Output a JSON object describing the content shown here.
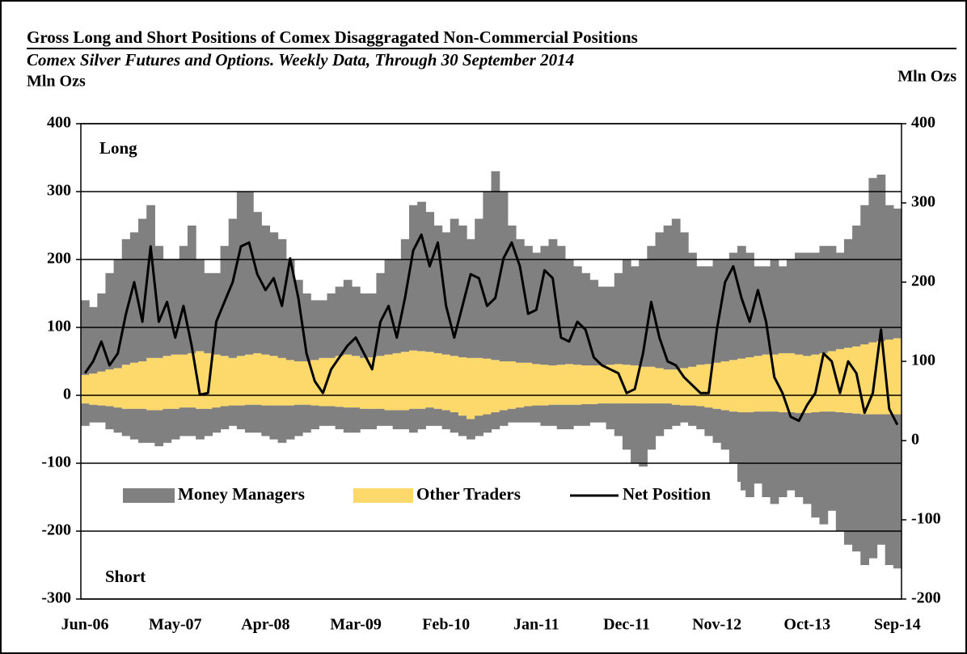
{
  "chart_data": {
    "type": "area",
    "title": "Gross Long and Short Positions of Comex Disaggragated Non-Commercial Positions",
    "subtitle": "Comex Silver Futures and Options. Weekly Data, Through 30 September 2014",
    "y_label": "Mln Ozs",
    "y2_label": "Mln Ozs",
    "annotations": [
      "Long",
      "Short"
    ],
    "categories": [
      "Jun-06",
      null,
      null,
      null,
      null,
      null,
      null,
      null,
      null,
      null,
      null,
      "May-07",
      null,
      null,
      null,
      null,
      null,
      null,
      null,
      null,
      null,
      null,
      "Apr-08",
      null,
      null,
      null,
      null,
      null,
      null,
      null,
      null,
      null,
      null,
      "Mar-09",
      null,
      null,
      null,
      null,
      null,
      null,
      null,
      null,
      null,
      null,
      "Feb-10",
      null,
      null,
      null,
      null,
      null,
      null,
      null,
      null,
      null,
      null,
      "Jan-11",
      null,
      null,
      null,
      null,
      null,
      null,
      null,
      null,
      null,
      null,
      "Dec-11",
      null,
      null,
      null,
      null,
      null,
      null,
      null,
      null,
      null,
      null,
      "Nov-12",
      null,
      null,
      null,
      null,
      null,
      null,
      null,
      null,
      null,
      null,
      "Oct-13",
      null,
      null,
      null,
      null,
      null,
      null,
      null,
      null,
      null,
      null,
      "Sep-14"
    ],
    "ylim": [
      -300,
      400
    ],
    "yticks": [
      -300,
      -200,
      -100,
      0,
      100,
      200,
      300,
      400
    ],
    "y2lim": [
      -200,
      400
    ],
    "y2ticks": [
      -200,
      -100,
      0,
      100,
      200,
      300,
      400
    ],
    "grid": true,
    "series": [
      {
        "name": "Money Managers",
        "color": "#808080",
        "long": [
          110,
          98,
          115,
          142,
          160,
          185,
          192,
          210,
          225,
          165,
          142,
          140,
          160,
          188,
          135,
          118,
          120,
          162,
          205,
          242,
          240,
          208,
          190,
          182,
          175,
          148,
          120,
          100,
          88,
          85,
          95,
          102,
          110,
          102,
          95,
          94,
          122,
          140,
          138,
          166,
          214,
          220,
          206,
          188,
          180,
          202,
          194,
          175,
          205,
          246,
          278,
          250,
          200,
          182,
          172,
          164,
          175,
          186,
          175,
          154,
          145,
          136,
          126,
          116,
          115,
          134,
          155,
          146,
          158,
          178,
          200,
          212,
          222,
          200,
          168,
          145,
          144,
          152,
          150,
          158,
          166,
          154,
          132,
          130,
          140,
          128,
          138,
          150,
          152,
          150,
          158,
          155,
          142,
          160,
          178,
          205,
          242,
          245,
          198,
          191
        ],
        "short": [
          -33,
          -26,
          -25,
          -34,
          -37,
          -40,
          -45,
          -50,
          -48,
          -53,
          -50,
          -45,
          -42,
          -42,
          -45,
          -40,
          -37,
          -34,
          -30,
          -35,
          -41,
          -41,
          -45,
          -50,
          -55,
          -50,
          -46,
          -41,
          -35,
          -29,
          -29,
          -33,
          -37,
          -37,
          -30,
          -30,
          -25,
          -23,
          -28,
          -28,
          -35,
          -30,
          -27,
          -25,
          -28,
          -30,
          -30,
          -30,
          -30,
          -27,
          -25,
          -23,
          -20,
          -22,
          -24,
          -25,
          -30,
          -31,
          -36,
          -36,
          -31,
          -32,
          -27,
          -28,
          -38,
          -48,
          -68,
          -88,
          -93,
          -68,
          -48,
          -38,
          -31,
          -25,
          -30,
          -34,
          -42,
          -50,
          -58,
          -76,
          -115,
          -125,
          -106,
          -126,
          -136,
          -125,
          -115,
          -124,
          -134,
          -155,
          -166,
          -146,
          -175,
          -194,
          -203,
          -222,
          -212,
          -192,
          -222,
          -227
        ]
      },
      {
        "name": "Other Traders",
        "color": "#fdd96b",
        "long": [
          30,
          32,
          35,
          38,
          40,
          45,
          48,
          50,
          55,
          55,
          58,
          60,
          60,
          62,
          65,
          62,
          60,
          58,
          55,
          58,
          60,
          62,
          60,
          58,
          55,
          52,
          50,
          50,
          52,
          55,
          55,
          58,
          60,
          58,
          55,
          56,
          58,
          60,
          62,
          64,
          66,
          65,
          64,
          62,
          60,
          58,
          56,
          55,
          55,
          54,
          52,
          50,
          50,
          48,
          48,
          46,
          45,
          44,
          45,
          46,
          45,
          44,
          44,
          44,
          45,
          46,
          45,
          44,
          42,
          42,
          40,
          38,
          38,
          40,
          42,
          45,
          46,
          48,
          50,
          52,
          54,
          56,
          58,
          60,
          60,
          62,
          62,
          60,
          58,
          60,
          62,
          65,
          68,
          70,
          72,
          75,
          78,
          80,
          82,
          84
        ],
        "short": [
          -12,
          -14,
          -15,
          -16,
          -18,
          -20,
          -20,
          -20,
          -22,
          -22,
          -20,
          -20,
          -18,
          -18,
          -20,
          -20,
          -18,
          -16,
          -15,
          -15,
          -14,
          -14,
          -15,
          -15,
          -15,
          -15,
          -14,
          -14,
          -15,
          -16,
          -16,
          -17,
          -18,
          -18,
          -20,
          -20,
          -20,
          -22,
          -22,
          -22,
          -20,
          -20,
          -18,
          -20,
          -22,
          -25,
          -30,
          -35,
          -30,
          -28,
          -25,
          -22,
          -20,
          -18,
          -16,
          -15,
          -15,
          -14,
          -14,
          -14,
          -14,
          -13,
          -13,
          -12,
          -12,
          -12,
          -12,
          -12,
          -12,
          -12,
          -12,
          -12,
          -14,
          -15,
          -15,
          -16,
          -18,
          -20,
          -22,
          -24,
          -25,
          -25,
          -24,
          -24,
          -24,
          -25,
          -25,
          -26,
          -26,
          -25,
          -24,
          -24,
          -25,
          -26,
          -27,
          -28,
          -28,
          -28,
          -28,
          -28
        ]
      },
      {
        "name": "Net Position",
        "color": "#000000",
        "axis": "y2",
        "values": [
          85,
          100,
          125,
          95,
          110,
          160,
          200,
          150,
          245,
          150,
          175,
          130,
          170,
          120,
          58,
          60,
          150,
          175,
          200,
          245,
          250,
          210,
          190,
          205,
          170,
          230,
          180,
          110,
          75,
          60,
          90,
          105,
          120,
          130,
          110,
          90,
          150,
          170,
          130,
          180,
          240,
          260,
          220,
          250,
          170,
          130,
          170,
          210,
          205,
          170,
          180,
          230,
          250,
          220,
          160,
          165,
          215,
          205,
          130,
          125,
          150,
          140,
          105,
          95,
          90,
          85,
          60,
          65,
          110,
          175,
          130,
          100,
          95,
          80,
          70,
          60,
          60,
          140,
          200,
          220,
          180,
          150,
          190,
          150,
          80,
          60,
          30,
          25,
          45,
          60,
          110,
          100,
          60,
          100,
          85,
          35,
          60,
          140,
          40,
          20
        ]
      }
    ]
  }
}
